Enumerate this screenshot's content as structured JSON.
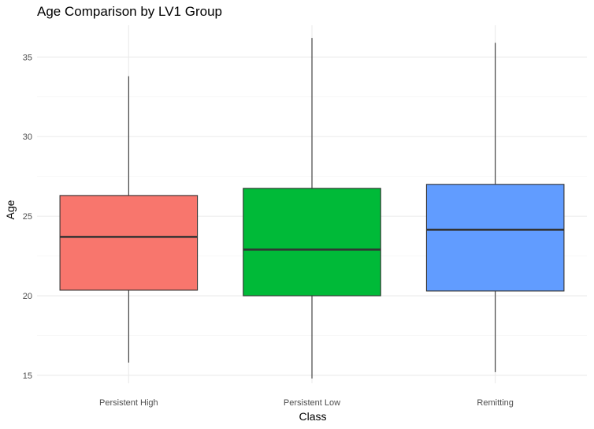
{
  "chart_data": {
    "type": "box",
    "title": "Age Comparison by LV1 Group",
    "xlabel": "Class",
    "ylabel": "Age",
    "ylim": [
      14.5,
      37
    ],
    "yticks": [
      15,
      20,
      25,
      30,
      35
    ],
    "grid": true,
    "legend": "none",
    "categories": [
      "Persistent High",
      "Persistent Low",
      "Remitting"
    ],
    "colors": [
      "#F8766D",
      "#00BA38",
      "#619CFF"
    ],
    "boxes": [
      {
        "category": "Persistent High",
        "min": 15.8,
        "q1": 20.35,
        "median": 23.7,
        "q3": 26.3,
        "max": 33.8
      },
      {
        "category": "Persistent Low",
        "min": 14.8,
        "q1": 20.0,
        "median": 22.9,
        "q3": 26.75,
        "max": 36.2
      },
      {
        "category": "Remitting",
        "min": 15.2,
        "q1": 20.3,
        "median": 24.15,
        "q3": 27.0,
        "max": 35.9
      }
    ]
  }
}
